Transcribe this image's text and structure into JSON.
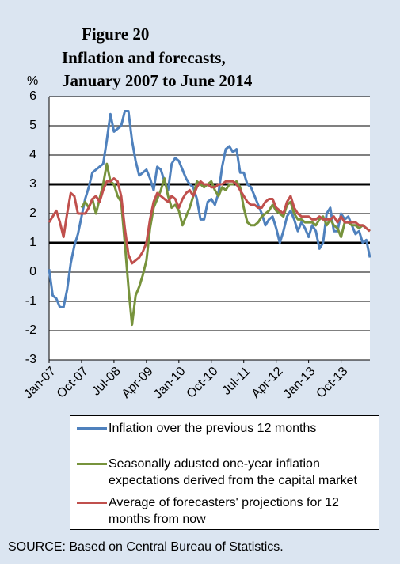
{
  "chart_data": {
    "type": "line",
    "title": [
      "Figure 20",
      "Inflation and forecasts,",
      "January 2007 to June 2014"
    ],
    "y_label": "%",
    "source": "SOURCE: Based on Central Bureau of Statistics.",
    "categories": [
      "Jan-07",
      null,
      null,
      null,
      null,
      null,
      null,
      null,
      null,
      "Oct-07",
      null,
      null,
      null,
      null,
      null,
      null,
      null,
      null,
      "Jul-08",
      null,
      null,
      null,
      null,
      null,
      null,
      null,
      null,
      "Apr-09",
      null,
      null,
      null,
      null,
      null,
      null,
      null,
      null,
      "Jan-10",
      null,
      null,
      null,
      null,
      null,
      null,
      null,
      null,
      "Oct-10",
      null,
      null,
      null,
      null,
      null,
      null,
      null,
      null,
      "Jul-11",
      null,
      null,
      null,
      null,
      null,
      null,
      null,
      null,
      "Apr-12",
      null,
      null,
      null,
      null,
      null,
      null,
      null,
      null,
      "Jan-13",
      null,
      null,
      null,
      null,
      null,
      null,
      null,
      null,
      "Oct-13",
      null,
      null,
      null,
      null,
      null,
      null,
      null,
      null
    ],
    "series": [
      {
        "name": "Inflation over the previous 12 months",
        "color": "#4f81bd",
        "values": [
          0.1,
          -0.8,
          -0.9,
          -1.2,
          -1.2,
          -0.6,
          0.3,
          0.9,
          1.3,
          1.9,
          2.5,
          2.9,
          3.4,
          3.5,
          3.6,
          3.7,
          4.5,
          5.4,
          4.8,
          4.9,
          5.0,
          5.5,
          5.5,
          4.5,
          3.8,
          3.3,
          3.4,
          3.5,
          3.2,
          2.8,
          3.6,
          3.5,
          3.1,
          2.8,
          3.7,
          3.9,
          3.8,
          3.5,
          3.2,
          3.0,
          2.9,
          2.5,
          1.8,
          1.8,
          2.4,
          2.5,
          2.3,
          2.7,
          3.6,
          4.2,
          4.3,
          4.1,
          4.2,
          3.4,
          3.4,
          3.0,
          2.9,
          2.6,
          2.3,
          2.0,
          1.6,
          1.8,
          1.9,
          1.5,
          1.0,
          1.4,
          1.9,
          2.1,
          1.8,
          1.4,
          1.7,
          1.5,
          1.2,
          1.6,
          1.4,
          0.8,
          1.0,
          2.0,
          2.2,
          1.4,
          1.4,
          2.0,
          1.8,
          1.9,
          1.6,
          1.3,
          1.4,
          1.0,
          1.1,
          0.5
        ]
      },
      {
        "name": "Seasonally adusted one-year inflation expectations derived from the capital market",
        "color": "#77933c",
        "values": [
          null,
          null,
          null,
          null,
          null,
          null,
          null,
          null,
          null,
          2.2,
          2.4,
          2.2,
          2.5,
          2.0,
          2.5,
          3.0,
          3.7,
          3.1,
          3.0,
          2.6,
          2.4,
          1.0,
          -0.5,
          -1.8,
          -0.8,
          -0.5,
          -0.1,
          0.4,
          1.5,
          2.2,
          2.5,
          2.8,
          3.2,
          2.6,
          2.2,
          2.3,
          2.1,
          1.6,
          1.9,
          2.2,
          2.6,
          3.1,
          3.0,
          2.9,
          3.0,
          3.1,
          2.8,
          2.6,
          2.9,
          2.8,
          3.0,
          3.0,
          3.1,
          2.9,
          2.2,
          1.7,
          1.6,
          1.6,
          1.7,
          1.9,
          2.0,
          2.1,
          2.3,
          2.1,
          2.0,
          1.9,
          2.3,
          2.4,
          2.0,
          1.8,
          1.8,
          1.7,
          1.7,
          1.7,
          1.6,
          1.8,
          1.9,
          1.6,
          1.8,
          1.6,
          1.5,
          1.2,
          1.7,
          1.7,
          1.6,
          1.6,
          1.5,
          1.6,
          1.5,
          1.4
        ]
      },
      {
        "name": "Average of forecasters' projections for 12 months from now",
        "color": "#c0504d",
        "values": [
          1.7,
          1.9,
          2.1,
          1.7,
          1.2,
          2.0,
          2.7,
          2.6,
          2.0,
          2.0,
          2.0,
          2.2,
          2.5,
          2.6,
          2.4,
          2.8,
          3.1,
          3.1,
          3.2,
          3.1,
          2.6,
          1.5,
          0.6,
          0.3,
          0.4,
          0.5,
          0.7,
          1.0,
          1.8,
          2.4,
          2.7,
          2.6,
          2.5,
          2.4,
          2.6,
          2.5,
          2.2,
          2.5,
          2.7,
          2.8,
          2.6,
          2.9,
          3.1,
          3.0,
          3.0,
          2.9,
          2.9,
          3.0,
          3.0,
          3.1,
          3.1,
          3.1,
          3.0,
          2.8,
          2.6,
          2.4,
          2.3,
          2.3,
          2.2,
          2.2,
          2.4,
          2.5,
          2.5,
          2.2,
          2.1,
          2.0,
          2.4,
          2.6,
          2.2,
          2.0,
          1.9,
          1.9,
          1.9,
          1.8,
          1.8,
          1.9,
          1.8,
          1.8,
          1.8,
          1.9,
          1.7,
          1.9,
          1.7,
          1.7,
          1.7,
          1.7,
          1.6,
          1.6,
          1.5,
          1.4
        ]
      }
    ],
    "ylim": [
      -3,
      6
    ],
    "yticks": [
      -3,
      -2,
      -1,
      0,
      1,
      2,
      3,
      4,
      5,
      6
    ],
    "grid": true,
    "reference_lines": [
      1,
      3
    ]
  }
}
